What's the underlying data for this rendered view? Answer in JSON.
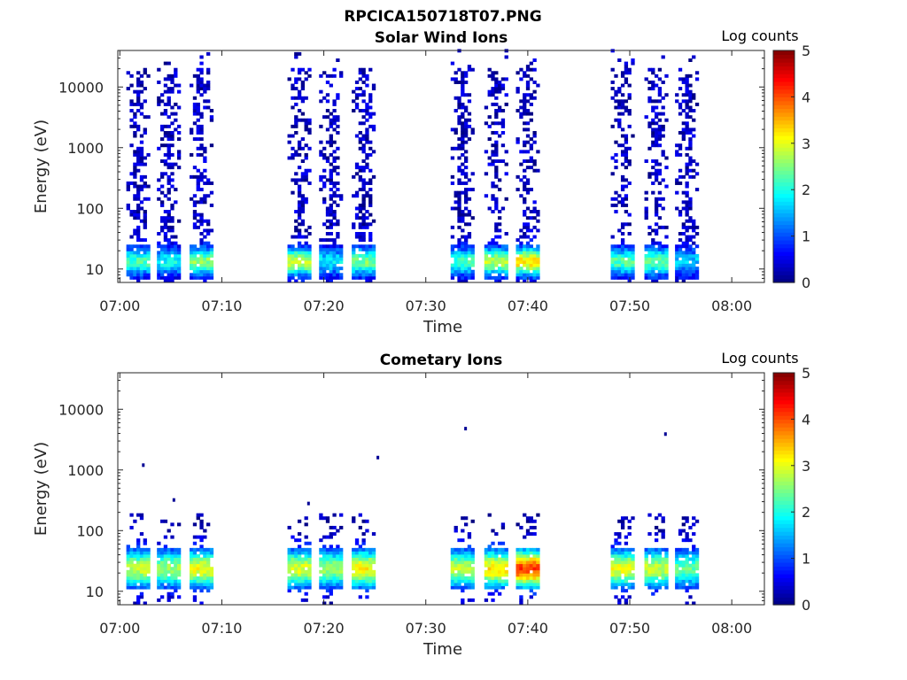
{
  "figure_title": "RPCICA150718T07.PNG",
  "chart_data": [
    {
      "type": "heatmap",
      "title": "Solar Wind Ions",
      "xlabel": "Time",
      "ylabel": "Energy (eV)",
      "y_scale": "log",
      "ylim": [
        6,
        40000
      ],
      "x_ticks": [
        "07:00",
        "07:10",
        "07:20",
        "07:30",
        "07:40",
        "07:50",
        "08:00"
      ],
      "y_ticks": [
        "10",
        "100",
        "1000",
        "10000"
      ],
      "colorbar": {
        "label": "Log counts",
        "range": [
          0,
          5
        ],
        "ticks": [
          "0",
          "1",
          "2",
          "3",
          "4",
          "5"
        ]
      },
      "bursts": [
        {
          "t": 1.8,
          "peak": 1.9
        },
        {
          "t": 4.8,
          "peak": 1.6
        },
        {
          "t": 8.0,
          "peak": 2.3
        },
        {
          "t": 17.6,
          "peak": 2.6
        },
        {
          "t": 20.7,
          "peak": 1.5
        },
        {
          "t": 23.9,
          "peak": 2.2
        },
        {
          "t": 33.6,
          "peak": 1.9
        },
        {
          "t": 36.9,
          "peak": 2.5
        },
        {
          "t": 40.0,
          "peak": 3.0
        },
        {
          "t": 49.3,
          "peak": 2.0
        },
        {
          "t": 52.6,
          "peak": 2.1
        },
        {
          "t": 55.6,
          "peak": 1.3
        }
      ]
    },
    {
      "type": "heatmap",
      "title": "Cometary Ions",
      "xlabel": "Time",
      "ylabel": "Energy (eV)",
      "y_scale": "log",
      "ylim": [
        6,
        40000
      ],
      "x_ticks": [
        "07:00",
        "07:10",
        "07:20",
        "07:30",
        "07:40",
        "07:50",
        "08:00"
      ],
      "y_ticks": [
        "10",
        "100",
        "1000",
        "10000"
      ],
      "colorbar": {
        "label": "Log counts",
        "range": [
          0,
          5
        ],
        "ticks": [
          "0",
          "1",
          "2",
          "3",
          "4",
          "5"
        ]
      },
      "bursts": [
        {
          "t": 1.8,
          "peak": 2.6
        },
        {
          "t": 4.8,
          "peak": 2.4
        },
        {
          "t": 8.0,
          "peak": 2.8
        },
        {
          "t": 17.6,
          "peak": 2.7
        },
        {
          "t": 20.7,
          "peak": 2.4
        },
        {
          "t": 23.9,
          "peak": 2.9
        },
        {
          "t": 33.6,
          "peak": 2.6
        },
        {
          "t": 36.9,
          "peak": 3.0
        },
        {
          "t": 40.0,
          "peak": 3.8
        },
        {
          "t": 49.3,
          "peak": 2.8
        },
        {
          "t": 52.6,
          "peak": 2.6
        },
        {
          "t": 55.6,
          "peak": 2.1
        }
      ]
    }
  ]
}
